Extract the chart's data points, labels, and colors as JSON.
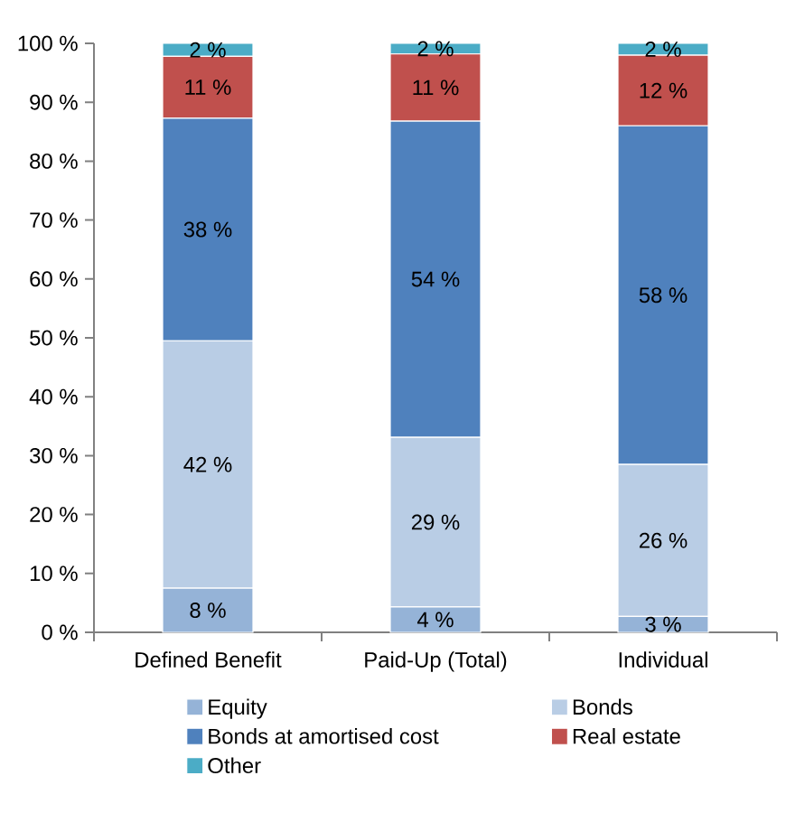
{
  "chart_data": {
    "type": "bar",
    "stacked": true,
    "categories": [
      "Defined Benefit",
      "Paid-Up (Total)",
      "Individual"
    ],
    "series": [
      {
        "name": "Equity",
        "color": "#95b3d7",
        "values": [
          7.5,
          4.3,
          2.7
        ],
        "value_labels": [
          "8 %",
          "4 %",
          "3 %"
        ]
      },
      {
        "name": "Bonds",
        "color": "#b9cde5",
        "values": [
          42,
          28.8,
          25.8
        ],
        "value_labels": [
          "42 %",
          "29 %",
          "26 %"
        ]
      },
      {
        "name": "Bonds at amortised cost",
        "color": "#4f81bd",
        "values": [
          37.8,
          53.7,
          57.5
        ],
        "value_labels": [
          "38 %",
          "54 %",
          "58 %"
        ]
      },
      {
        "name": "Real estate",
        "color": "#c0504d",
        "values": [
          10.5,
          11.4,
          12
        ],
        "value_labels": [
          "11 %",
          "11 %",
          "12 %"
        ]
      },
      {
        "name": "Other",
        "color": "#4bacc6",
        "values": [
          2.2,
          1.8,
          2
        ],
        "value_labels": [
          "2 %",
          "2 %",
          "2 %"
        ]
      }
    ],
    "ylim": [
      0,
      100
    ],
    "yticks": [
      {
        "value": 0,
        "label": "0 %"
      },
      {
        "value": 10,
        "label": "10 %"
      },
      {
        "value": 20,
        "label": "20 %"
      },
      {
        "value": 30,
        "label": "30 %"
      },
      {
        "value": 40,
        "label": "40 %"
      },
      {
        "value": 50,
        "label": "50 %"
      },
      {
        "value": 60,
        "label": "60 %"
      },
      {
        "value": 70,
        "label": "70 %"
      },
      {
        "value": 80,
        "label": "80 %"
      },
      {
        "value": 90,
        "label": "90 %"
      },
      {
        "value": 100,
        "label": "100 %"
      }
    ],
    "grid": false,
    "legend": "bottom"
  }
}
